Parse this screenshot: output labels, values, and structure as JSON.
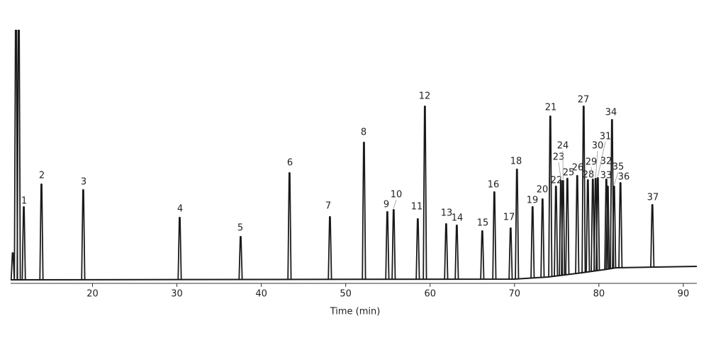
{
  "chart_data": {
    "type": "chromatogram",
    "x_label": "Time (min)",
    "xlim": [
      10.3,
      91.6
    ],
    "xticks": [
      20,
      30,
      40,
      50,
      60,
      70,
      80,
      90
    ],
    "ylim": [
      0,
      350
    ],
    "color": "#1a1a1a",
    "peaks": {
      "labels": [
        null,
        null,
        null,
        "1",
        "2",
        "3",
        "4",
        "5",
        "6",
        "7",
        "8",
        "9",
        "10",
        "11",
        "12",
        "13",
        "14",
        "15",
        "16",
        "17",
        "18",
        "19",
        "20",
        "21",
        "22",
        "23",
        "24",
        "25",
        "26",
        "27",
        "28",
        "29",
        "30",
        "31",
        "32",
        "33",
        "34",
        "35",
        "36",
        "37"
      ],
      "x": [
        10.55,
        10.93,
        11.26,
        11.86,
        13.95,
        18.9,
        30.33,
        37.55,
        43.34,
        48.13,
        52.16,
        54.93,
        55.68,
        58.54,
        59.38,
        61.9,
        63.16,
        66.18,
        67.61,
        69.54,
        70.29,
        72.14,
        73.32,
        74.24,
        74.91,
        75.5,
        75.75,
        76.26,
        77.43,
        78.19,
        78.69,
        79.28,
        79.61,
        79.87,
        80.88,
        81.05,
        81.55,
        81.8,
        82.55,
        86.33
      ],
      "heights": [
        38,
        400,
        400,
        103,
        135,
        127,
        88,
        61,
        151,
        89,
        194,
        96,
        99,
        86,
        245,
        79,
        77,
        69,
        124,
        73,
        156,
        103,
        114,
        231,
        132,
        140,
        140,
        143,
        147,
        245,
        141,
        142,
        143,
        144,
        142,
        132,
        226,
        132,
        137,
        106
      ]
    },
    "baseline": {
      "x": [
        10.3,
        70,
        74,
        78,
        81,
        82,
        91.6
      ],
      "values": [
        0,
        1,
        4,
        10,
        15,
        17,
        19
      ]
    }
  }
}
